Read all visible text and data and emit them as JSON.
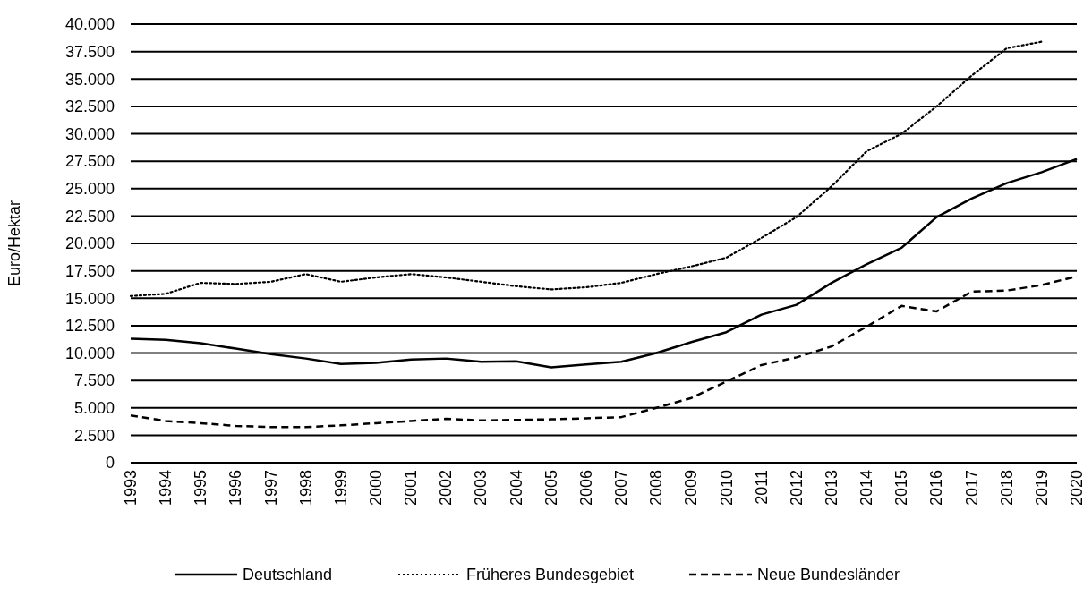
{
  "chart_data": {
    "type": "line",
    "ylabel": "Euro/Hektar",
    "categories": [
      "1993",
      "1994",
      "1995",
      "1996",
      "1997",
      "1998",
      "1999",
      "2000",
      "2001",
      "2002",
      "2003",
      "2004",
      "2005",
      "2006",
      "2007",
      "2008",
      "2009",
      "2010",
      "2011",
      "2012",
      "2013",
      "2014",
      "2015",
      "2016",
      "2017",
      "2018",
      "2019",
      "2020"
    ],
    "series": [
      {
        "name": "Deutschland",
        "color": "#000000",
        "line_style": "solid",
        "values": [
          11300,
          11200,
          10900,
          10400,
          9900,
          9500,
          9000,
          9100,
          9400,
          9500,
          9200,
          9250,
          8700,
          8950,
          9200,
          10000,
          11000,
          11900,
          13500,
          14400,
          16400,
          18100,
          19600,
          22400,
          24100,
          25500,
          26500,
          27700
        ]
      },
      {
        "name": "Früheres Bundesgebiet",
        "color": "#000000",
        "line_style": "dotted",
        "values": [
          15200,
          15400,
          16400,
          16300,
          16500,
          17200,
          16500,
          16900,
          17200,
          16900,
          16500,
          16100,
          15800,
          16000,
          16400,
          17200,
          17900,
          18700,
          20500,
          22400,
          25200,
          28400,
          30000,
          32500,
          35300,
          37800,
          38400,
          null
        ]
      },
      {
        "name": "Neue Bundesländer",
        "color": "#000000",
        "line_style": "dashed",
        "values": [
          4300,
          3800,
          3600,
          3350,
          3250,
          3250,
          3400,
          3600,
          3800,
          4000,
          3850,
          3900,
          3950,
          4050,
          4150,
          5000,
          5900,
          7400,
          8900,
          9600,
          10600,
          12400,
          14300,
          13800,
          15600,
          15700,
          16200,
          17000
        ]
      }
    ],
    "ylim": [
      0,
      40000
    ],
    "yticks": [
      0,
      {
        "value": 2500,
        "label": "2.500"
      },
      {
        "value": 5000,
        "label": "5.000"
      },
      {
        "value": 7500,
        "label": "7.500"
      },
      {
        "value": 10000,
        "label": "10.000"
      },
      {
        "value": 12500,
        "label": "12.500"
      },
      {
        "value": 15000,
        "label": "15.000"
      },
      {
        "value": 17500,
        "label": "17.500"
      },
      {
        "value": 20000,
        "label": "20.000"
      },
      {
        "value": 22500,
        "label": "22.500"
      },
      {
        "value": 25000,
        "label": "25.000"
      },
      {
        "value": 27500,
        "label": "27.500"
      },
      {
        "value": 30000,
        "label": "30.000"
      },
      {
        "value": 32500,
        "label": "32.500"
      },
      {
        "value": 35000,
        "label": "35.000"
      },
      {
        "value": 37500,
        "label": "37.500"
      },
      {
        "value": 40000,
        "label": "40.000"
      }
    ],
    "grid": "y",
    "legend": "bottom",
    "marker": "none"
  }
}
